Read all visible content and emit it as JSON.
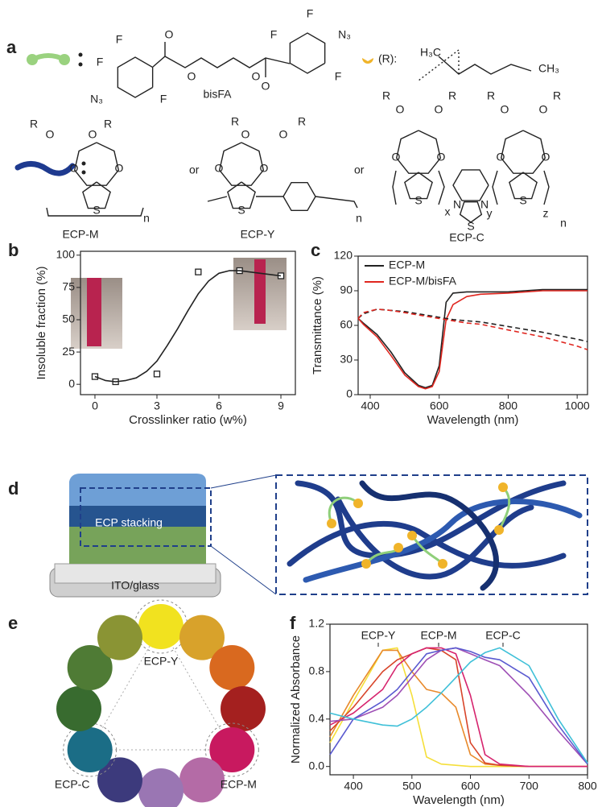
{
  "panel_labels": [
    "a",
    "b",
    "c",
    "d",
    "e",
    "f"
  ],
  "panel_a": {
    "crosslinker_name": "bisFA",
    "side_chain_label": "(R):",
    "or": [
      "or",
      "or"
    ],
    "polymers": [
      "ECP-M",
      "ECP-Y",
      "ECP-C"
    ],
    "atoms": [
      "F",
      "F",
      "N₃",
      "F",
      "O",
      "O",
      "O",
      "O",
      "F",
      "F",
      "N₃",
      "F",
      "H₃C",
      "CH₃",
      "R",
      "O",
      "O",
      "R",
      "O",
      "O",
      "S",
      "n",
      "R",
      "O",
      "O",
      "R",
      "O",
      "O",
      "S",
      "n",
      "R",
      "O",
      "O",
      "R",
      "R",
      "O",
      "O",
      "R",
      "O",
      "O",
      "O",
      "O",
      "S",
      "S",
      "N",
      "N",
      "S",
      "x",
      "y",
      "z",
      "n"
    ]
  },
  "panel_d": {
    "layer": "ECP stacking",
    "substrate": "ITO/glass"
  },
  "panel_e": {
    "labels": [
      "ECP-Y",
      "ECP-M",
      "ECP-C"
    ],
    "colors": [
      "#f1e21f",
      "#d8a22b",
      "#d9691f",
      "#a4201f",
      "#c8195f",
      "#b46ba6",
      "#9a76b3",
      "#3c3a7c",
      "#1b6d86",
      "#386b2f",
      "#4f7b35",
      "#8a9434"
    ]
  },
  "chart_data": [
    {
      "type": "scatter",
      "xlabel": "Crosslinker ratio (w%)",
      "ylabel": "Insoluble fraction (%)",
      "xlim": [
        -0.7,
        9.7
      ],
      "ylim": [
        -8,
        103
      ],
      "xticks": [
        0,
        3,
        6,
        9
      ],
      "yticks": [
        0,
        25,
        50,
        75,
        100
      ],
      "series": [
        {
          "style": "markers",
          "color": "#222222",
          "x": [
            0,
            1,
            3,
            5,
            7,
            9
          ],
          "values": [
            6,
            2,
            8,
            87,
            88,
            84
          ]
        },
        {
          "style": "solid",
          "color": "#222222",
          "x": [
            0,
            0.5,
            1,
            1.5,
            2,
            2.5,
            3,
            3.5,
            4,
            4.5,
            5,
            5.5,
            6,
            6.5,
            7,
            7.5,
            8,
            8.5,
            9
          ],
          "values": [
            6,
            3,
            2,
            3,
            5,
            10,
            18,
            30,
            43,
            57,
            70,
            80,
            86,
            88,
            88,
            87,
            86,
            85,
            84
          ]
        }
      ]
    },
    {
      "type": "line",
      "xlabel": "Wavelength (nm)",
      "ylabel": "Transmittance (%)",
      "legend": "upper left",
      "xlim": [
        365,
        1030
      ],
      "ylim": [
        0,
        120
      ],
      "xticks": [
        400,
        600,
        800,
        1000
      ],
      "yticks": [
        0,
        30,
        60,
        90,
        120
      ],
      "x": [
        365,
        380,
        420,
        460,
        500,
        540,
        560,
        580,
        600,
        620,
        640,
        680,
        720,
        800,
        900,
        1000,
        1030
      ],
      "series": [
        {
          "name": "ECP-M",
          "style": "solid",
          "color": "#222222",
          "values": [
            66,
            62,
            52,
            37,
            19,
            8,
            6,
            8,
            25,
            80,
            88,
            89,
            89,
            89,
            91,
            91,
            91
          ]
        },
        {
          "name": "ECP-M/bisFA",
          "style": "solid",
          "color": "#e0261f",
          "values": [
            66,
            61,
            50,
            34,
            17,
            7,
            5,
            7,
            20,
            65,
            78,
            85,
            87,
            88,
            90,
            90,
            90
          ]
        },
        {
          "style": "dashed",
          "color": "#222222",
          "values": [
            66,
            70,
            74,
            73,
            72,
            70,
            69,
            68,
            67,
            66,
            65,
            64,
            63,
            59,
            54,
            48,
            46
          ]
        },
        {
          "style": "dashed",
          "color": "#e0261f",
          "values": [
            66,
            71,
            74,
            73,
            71,
            69,
            68,
            67,
            66,
            65,
            64,
            62,
            61,
            56,
            50,
            42,
            39
          ]
        }
      ]
    },
    {
      "type": "line",
      "xlabel": "Wavelength (nm)",
      "ylabel": "Normalized Absorbance",
      "annotations": [
        "ECP-Y",
        "ECP-M",
        "ECP-C"
      ],
      "xlim": [
        360,
        800
      ],
      "ylim": [
        -0.07,
        1.2
      ],
      "xticks": [
        400,
        500,
        600,
        700,
        800
      ],
      "yticks": [
        {
          "value": 0,
          "label": "0.0"
        },
        0.4,
        0.8,
        1.2
      ],
      "x": [
        360,
        400,
        450,
        475,
        500,
        525,
        550,
        575,
        600,
        625,
        650,
        700,
        750,
        800
      ],
      "series": [
        {
          "style": "solid",
          "color": "#f5df3a",
          "values": [
            0.2,
            0.55,
            0.98,
            1.0,
            0.6,
            0.08,
            0.02,
            0.01,
            0,
            0,
            0,
            0,
            0,
            0
          ]
        },
        {
          "style": "solid",
          "color": "#e8892a",
          "values": [
            0.25,
            0.6,
            0.98,
            0.98,
            0.8,
            0.65,
            0.62,
            0.5,
            0.1,
            0.02,
            0.01,
            0,
            0,
            0
          ]
        },
        {
          "style": "solid",
          "color": "#d8452a",
          "values": [
            0.3,
            0.5,
            0.8,
            0.9,
            0.95,
            1.0,
            0.98,
            0.9,
            0.2,
            0.03,
            0.01,
            0,
            0,
            0
          ]
        },
        {
          "style": "solid",
          "color": "#d6246e",
          "values": [
            0.35,
            0.45,
            0.65,
            0.85,
            0.95,
            1.0,
            1.0,
            0.95,
            0.6,
            0.1,
            0.02,
            0,
            0,
            0
          ]
        },
        {
          "style": "solid",
          "color": "#9e4fb5",
          "values": [
            0.38,
            0.4,
            0.5,
            0.6,
            0.75,
            0.9,
            0.98,
            1.0,
            0.95,
            0.9,
            0.85,
            0.6,
            0.3,
            0.02
          ]
        },
        {
          "style": "solid",
          "color": "#5a5ad0",
          "values": [
            0.1,
            0.4,
            0.55,
            0.65,
            0.8,
            0.95,
            0.98,
            1.0,
            0.97,
            0.92,
            0.9,
            0.75,
            0.35,
            0.02
          ]
        },
        {
          "style": "solid",
          "color": "#3fc0d8",
          "values": [
            0.45,
            0.4,
            0.35,
            0.34,
            0.4,
            0.5,
            0.62,
            0.75,
            0.88,
            0.96,
            1.0,
            0.85,
            0.4,
            0.03
          ]
        }
      ]
    }
  ]
}
